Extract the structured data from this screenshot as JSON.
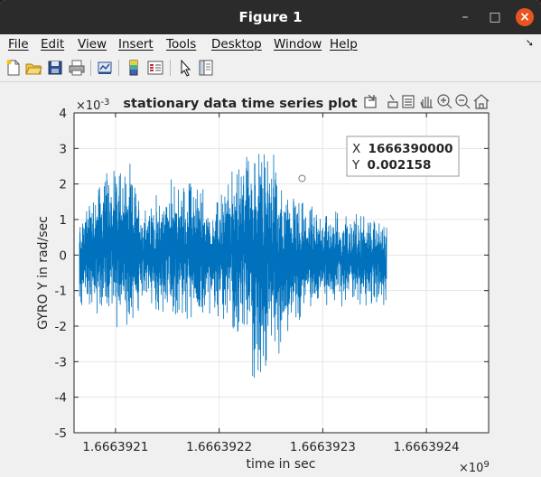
{
  "window": {
    "title": "Figure 1",
    "controls": {
      "minimize": "–",
      "maximize": "□",
      "close": "×"
    }
  },
  "menubar": {
    "items": [
      "File",
      "Edit",
      "View",
      "Insert",
      "Tools",
      "Desktop",
      "Window",
      "Help"
    ]
  },
  "toolbar": {
    "buttons": [
      "new-figure",
      "open-file",
      "save",
      "print",
      "link-plot",
      "insert-colorbar",
      "insert-legend",
      "edit-plot",
      "property-inspector"
    ]
  },
  "axes_toolbar": {
    "buttons": [
      "export",
      "brush",
      "data-tips",
      "pan",
      "zoom-in",
      "zoom-out",
      "home"
    ]
  },
  "colors": {
    "line": "#0072bd",
    "grid": "#e6e6e6",
    "axis": "#262626"
  },
  "chart_data": {
    "type": "line",
    "title": "stationary data time series plot",
    "xlabel": "time in sec",
    "ylabel": "GYRO Y in rad/sec",
    "x_exponent_label": "×10",
    "x_exponent": "9",
    "y_exponent_label": "×10",
    "y_exponent": "-3",
    "xlim": [
      1.66639206,
      1.66639246
    ],
    "ylim": [
      -5,
      4
    ],
    "x_ticks": [
      1.6663921,
      1.6663922,
      1.6663923,
      1.6663924
    ],
    "x_tick_labels": [
      "1.6663921",
      "1.6663922",
      "1.6663923",
      "1.6663924"
    ],
    "y_ticks": [
      -5,
      -4,
      -3,
      -2,
      -1,
      0,
      1,
      2,
      3,
      4
    ],
    "y_tick_labels": [
      "-5",
      "-4",
      "-3",
      "-2",
      "-1",
      "0",
      "1",
      "2",
      "3",
      "4"
    ],
    "grid": true,
    "series": [
      {
        "x_range": [
          1.6663920652,
          1.6663923616
        ],
        "envelope": [
          {
            "x": 1.6663920652,
            "min": -1.6,
            "max": 1.2
          },
          {
            "x": 1.666392075,
            "min": -1.7,
            "max": 2.0
          },
          {
            "x": 1.666392085,
            "min": -1.9,
            "max": 2.4
          },
          {
            "x": 1.666392095,
            "min": -2.2,
            "max": 2.8
          },
          {
            "x": 1.666392105,
            "min": -2.3,
            "max": 3.0
          },
          {
            "x": 1.666392115,
            "min": -2.1,
            "max": 2.6
          },
          {
            "x": 1.666392125,
            "min": -1.8,
            "max": 1.8
          },
          {
            "x": 1.666392135,
            "min": -1.7,
            "max": 1.6
          },
          {
            "x": 1.666392145,
            "min": -1.9,
            "max": 2.0
          },
          {
            "x": 1.666392155,
            "min": -2.1,
            "max": 2.3
          },
          {
            "x": 1.666392165,
            "min": -2.0,
            "max": 2.2
          },
          {
            "x": 1.666392175,
            "min": -2.2,
            "max": 2.4
          },
          {
            "x": 1.666392185,
            "min": -2.0,
            "max": 2.1
          },
          {
            "x": 1.666392195,
            "min": -1.7,
            "max": 1.6
          },
          {
            "x": 1.666392205,
            "min": -2.1,
            "max": 2.2
          },
          {
            "x": 1.666392215,
            "min": -2.5,
            "max": 2.7
          },
          {
            "x": 1.666392225,
            "min": -2.9,
            "max": 3.2
          },
          {
            "x": 1.666392235,
            "min": -4.2,
            "max": 3.7
          },
          {
            "x": 1.666392245,
            "min": -3.5,
            "max": 3.4
          },
          {
            "x": 1.666392255,
            "min": -3.0,
            "max": 2.9
          },
          {
            "x": 1.666392265,
            "min": -2.5,
            "max": 2.2
          },
          {
            "x": 1.666392275,
            "min": -2.0,
            "max": 1.8
          },
          {
            "x": 1.666392285,
            "min": -1.7,
            "max": 1.5
          },
          {
            "x": 1.6663923616,
            "min": -1.5,
            "max": 1.2
          }
        ]
      }
    ],
    "datatip": {
      "x_label": "X",
      "x_value": "1666390000",
      "y_label": "Y",
      "y_value": "0.002158",
      "point_x": 1.66639228,
      "point_y": 2.158
    }
  }
}
